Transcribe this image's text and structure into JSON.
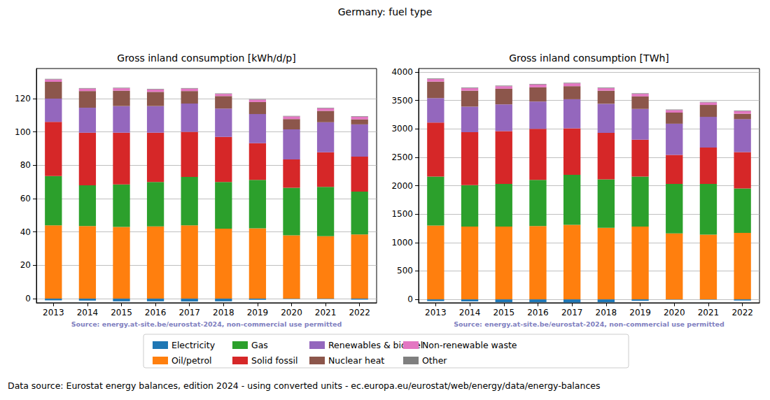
{
  "title": "Germany: fuel type",
  "footnote": "Data source: Eurostat energy balances, edition 2024 - using converted units - ec.europa.eu/eurostat/web/energy/data/energy-balances",
  "chart_data": [
    {
      "type": "bar",
      "title": "Gross inland consumption [kWh/d/p]",
      "annotation": "Source: energy.at-site.be/eurostat-2024, non-commercial use permitted",
      "stacked": true,
      "grid": true,
      "legend": "bottom",
      "categories": [
        "2013",
        "2014",
        "2015",
        "2016",
        "2017",
        "2018",
        "2019",
        "2020",
        "2021",
        "2022"
      ],
      "ylim": [
        -2.5,
        138
      ],
      "yticks": [
        0,
        20,
        40,
        60,
        80,
        100,
        120
      ],
      "series": [
        {
          "name": "Electricity",
          "color": "#1f77b4",
          "values": [
            -1.0,
            -1.2,
            -1.6,
            -1.6,
            -1.7,
            -1.6,
            -0.7,
            -0.2,
            -0.2,
            -0.6
          ]
        },
        {
          "name": "Oil/petrol",
          "color": "#ff7f0e",
          "values": [
            44,
            43.5,
            43,
            43.3,
            44,
            42,
            42.2,
            38,
            37.5,
            38.5
          ]
        },
        {
          "name": "Gas",
          "color": "#2ca02c",
          "values": [
            29.5,
            24.5,
            25.5,
            26.7,
            29,
            28,
            29,
            28.5,
            29.5,
            25.7
          ]
        },
        {
          "name": "Solid fossil",
          "color": "#d62728",
          "values": [
            32.5,
            31.5,
            31,
            29.5,
            27,
            27,
            22,
            17,
            20.8,
            21
          ]
        },
        {
          "name": "Renewables & biofuel",
          "color": "#9467bd",
          "values": [
            14,
            15,
            16,
            16,
            17,
            17,
            17.5,
            18,
            18,
            19.3
          ]
        },
        {
          "name": "Nuclear heat",
          "color": "#8c564b",
          "values": [
            10,
            10,
            9.2,
            8.5,
            7.5,
            7.5,
            7.2,
            6.2,
            6.8,
            3
          ]
        },
        {
          "name": "Non-renewable waste",
          "color": "#e377c2",
          "values": [
            1.5,
            1.5,
            1.5,
            1.5,
            1.5,
            1.3,
            1.5,
            1.6,
            1.6,
            1.6
          ]
        },
        {
          "name": "Other",
          "color": "#7f7f7f",
          "values": [
            0.3,
            0.3,
            0.3,
            0.3,
            0.3,
            0.3,
            0.3,
            0.3,
            0.3,
            0.3
          ]
        }
      ]
    },
    {
      "type": "bar",
      "title": "Gross inland consumption [TWh]",
      "annotation": "Source: energy.at-site.be/eurostat-2024, non-commercial use permitted",
      "stacked": true,
      "grid": true,
      "legend": "bottom",
      "categories": [
        "2013",
        "2014",
        "2015",
        "2016",
        "2017",
        "2018",
        "2019",
        "2020",
        "2021",
        "2022"
      ],
      "ylim": [
        -60,
        4060
      ],
      "yticks": [
        0,
        500,
        1000,
        1500,
        2000,
        2500,
        3000,
        3500,
        4000
      ],
      "series": [
        {
          "name": "Electricity",
          "color": "#1f77b4",
          "values": [
            -30,
            -35,
            -50,
            -50,
            -55,
            -50,
            -25,
            -5,
            -5,
            -20
          ]
        },
        {
          "name": "Oil/petrol",
          "color": "#ff7f0e",
          "values": [
            1300,
            1280,
            1280,
            1290,
            1310,
            1260,
            1280,
            1160,
            1140,
            1170
          ]
        },
        {
          "name": "Gas",
          "color": "#2ca02c",
          "values": [
            860,
            730,
            750,
            810,
            880,
            850,
            880,
            870,
            890,
            780
          ]
        },
        {
          "name": "Solid fossil",
          "color": "#d62728",
          "values": [
            950,
            930,
            930,
            900,
            820,
            820,
            650,
            510,
            640,
            640
          ]
        },
        {
          "name": "Renewables & biofuel",
          "color": "#9467bd",
          "values": [
            430,
            450,
            470,
            480,
            510,
            510,
            540,
            550,
            540,
            580
          ]
        },
        {
          "name": "Nuclear heat",
          "color": "#8c564b",
          "values": [
            290,
            280,
            275,
            250,
            230,
            230,
            220,
            195,
            210,
            95
          ]
        },
        {
          "name": "Non-renewable waste",
          "color": "#e377c2",
          "values": [
            45,
            45,
            45,
            50,
            50,
            45,
            45,
            45,
            45,
            45
          ]
        },
        {
          "name": "Other",
          "color": "#7f7f7f",
          "values": [
            10,
            10,
            10,
            10,
            10,
            10,
            10,
            10,
            10,
            10
          ]
        }
      ]
    }
  ]
}
